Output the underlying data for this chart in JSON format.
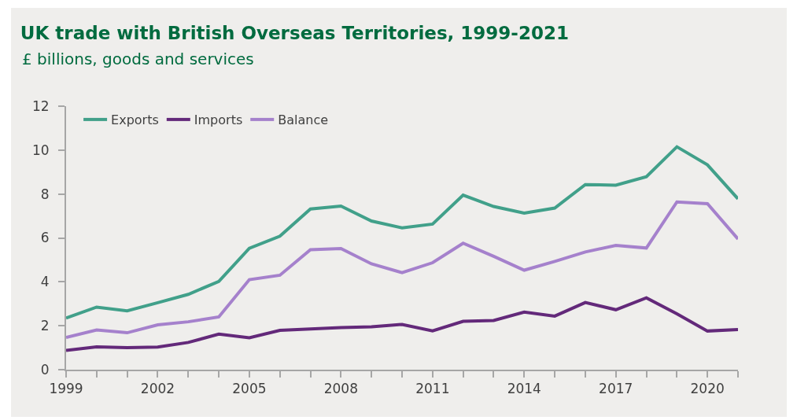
{
  "chart_data": {
    "type": "line",
    "title": "UK trade with British Overseas Territories, 1999-2021",
    "subtitle": "£ billions, goods and services",
    "x": [
      1999,
      2000,
      2001,
      2002,
      2003,
      2004,
      2005,
      2006,
      2007,
      2008,
      2009,
      2010,
      2011,
      2012,
      2013,
      2014,
      2015,
      2016,
      2017,
      2018,
      2019,
      2020,
      2021
    ],
    "series": [
      {
        "name": "Exports",
        "color": "#41a08a",
        "values": [
          2.35,
          2.85,
          2.68,
          3.05,
          3.43,
          4.02,
          5.53,
          6.08,
          7.32,
          7.45,
          6.77,
          6.46,
          6.63,
          7.95,
          7.43,
          7.13,
          7.36,
          8.43,
          8.4,
          8.79,
          10.15,
          9.33,
          7.78
        ]
      },
      {
        "name": "Imports",
        "color": "#63297a",
        "values": [
          0.88,
          1.04,
          1.0,
          1.03,
          1.24,
          1.62,
          1.45,
          1.79,
          1.85,
          1.92,
          1.95,
          2.06,
          1.77,
          2.2,
          2.24,
          2.62,
          2.44,
          3.06,
          2.73,
          3.27,
          2.54,
          1.76,
          1.83
        ]
      },
      {
        "name": "Balance",
        "color": "#a581cc",
        "values": [
          1.47,
          1.81,
          1.68,
          2.04,
          2.18,
          2.4,
          4.1,
          4.3,
          5.46,
          5.52,
          4.82,
          4.42,
          4.87,
          5.76,
          5.16,
          4.53,
          4.93,
          5.36,
          5.66,
          5.54,
          7.64,
          7.56,
          5.95
        ]
      }
    ],
    "xlim": [
      1999,
      2021
    ],
    "xticks": [
      1999,
      {
        "value": 2000,
        "label": null
      },
      {
        "value": 2001,
        "label": null
      },
      2002,
      {
        "value": 2003,
        "label": null
      },
      {
        "value": 2004,
        "label": null
      },
      2005,
      {
        "value": 2006,
        "label": null
      },
      {
        "value": 2007,
        "label": null
      },
      2008,
      {
        "value": 2009,
        "label": null
      },
      {
        "value": 2010,
        "label": null
      },
      2011,
      {
        "value": 2012,
        "label": null
      },
      {
        "value": 2013,
        "label": null
      },
      2014,
      {
        "value": 2015,
        "label": null
      },
      {
        "value": 2016,
        "label": null
      },
      2017,
      {
        "value": 2018,
        "label": null
      },
      {
        "value": 2019,
        "label": null
      },
      2020,
      {
        "value": 2021,
        "label": null
      }
    ],
    "ylim": [
      0,
      12
    ],
    "yticks": [
      0,
      2,
      4,
      6,
      8,
      10,
      12
    ],
    "grid": false,
    "legend": "top left",
    "marker": "none",
    "line_style": "solid"
  }
}
